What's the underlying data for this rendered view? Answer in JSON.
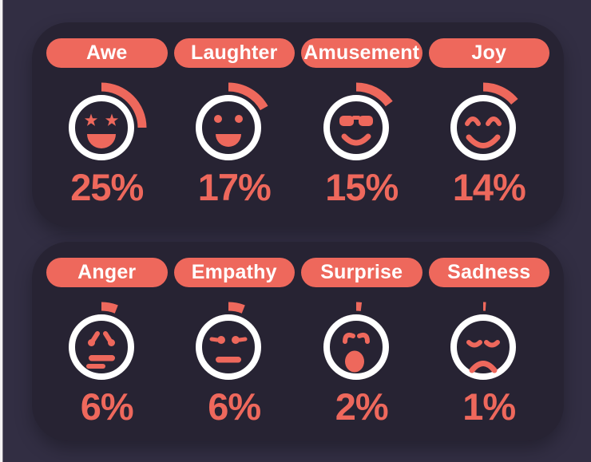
{
  "theme": {
    "background": "#322e43",
    "panel": "#272333",
    "accent": "#ee685c",
    "ring": "#ffffff",
    "pill_text": "#ffffff",
    "edge_strip": "#f4f2f4"
  },
  "chart_data": {
    "type": "pie",
    "subtype": "radial-progress-emoji-gauges",
    "categories": [
      "Awe",
      "Laughter",
      "Amusement",
      "Joy",
      "Anger",
      "Empathy",
      "Surprise",
      "Sadness"
    ],
    "values": [
      25,
      17,
      15,
      14,
      6,
      6,
      2,
      1
    ],
    "unit": "%",
    "title": "",
    "layout": "two dark rounded panels, 4 gauges per row; coral arc sweeps clockwise from 12 o'clock, sweep angle = value% of 360deg"
  },
  "emotions": [
    {
      "label": "Awe",
      "pct": 25,
      "pct_display": "25%",
      "icon": "star-eyes-grin-face"
    },
    {
      "label": "Laughter",
      "pct": 17,
      "pct_display": "17%",
      "icon": "dot-eyes-grin-face"
    },
    {
      "label": "Amusement",
      "pct": 15,
      "pct_display": "15%",
      "icon": "sunglasses-smile-face"
    },
    {
      "label": "Joy",
      "pct": 14,
      "pct_display": "14%",
      "icon": "happy-closed-eyes-smile-face"
    },
    {
      "label": "Anger",
      "pct": 6,
      "pct_display": "6%",
      "icon": "angry-eyes-grimace-face"
    },
    {
      "label": "Empathy",
      "pct": 6,
      "pct_display": "6%",
      "icon": "neutral-eyes-flat-mouth-face"
    },
    {
      "label": "Surprise",
      "pct": 2,
      "pct_display": "2%",
      "icon": "raised-brows-open-mouth-face"
    },
    {
      "label": "Sadness",
      "pct": 1,
      "pct_display": "1%",
      "icon": "droopy-eyes-frown-face"
    }
  ]
}
